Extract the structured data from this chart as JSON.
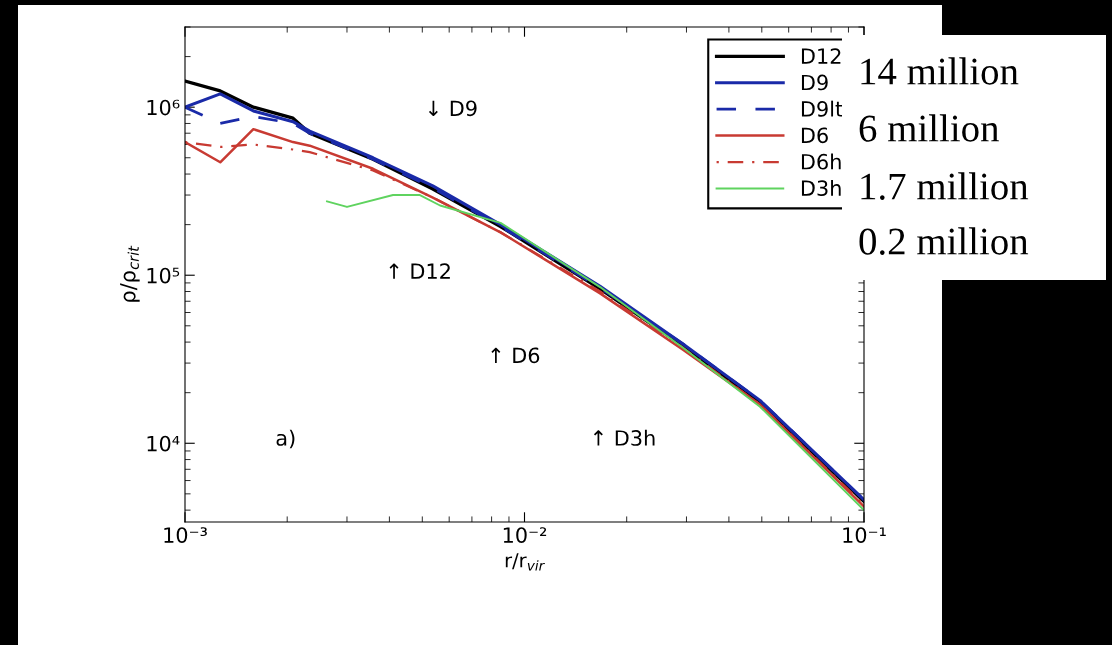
{
  "chart_data": {
    "type": "line",
    "xlabel": "r/r$_{vir}$",
    "ylabel": "ρ/ρ$_{crit}$",
    "log": "xy",
    "grid": false,
    "legend": "top right",
    "marker": "none",
    "xlim": [
      0.001,
      0.1
    ],
    "ylim": [
      3400,
      3000000
    ],
    "xticks": [
      {
        "value": 0.001,
        "label": "10⁻³"
      },
      {
        "value": 0.01,
        "label": "10⁻²"
      },
      {
        "value": 0.1,
        "label": "10⁻¹"
      }
    ],
    "yticks": [
      {
        "value": 10000,
        "label": "10⁴"
      },
      {
        "value": 100000,
        "label": "10⁵"
      },
      {
        "value": 1000000,
        "label": "10⁶"
      }
    ],
    "x": [
      0.001,
      0.00127,
      0.00159,
      0.00208,
      0.00233,
      0.00358,
      0.00537,
      0.0085,
      0.0167,
      0.0293,
      0.0494,
      0.1
    ],
    "series": [
      {
        "name": "D12",
        "color": "#000000",
        "line_style": "solid",
        "values": [
          1430000,
          1250000,
          1000000,
          860000,
          700000,
          490000,
          326000,
          195000,
          83000,
          38000,
          17500,
          4500
        ]
      },
      {
        "name": "D9",
        "color": "#1a2aa8",
        "line_style": "solid",
        "values": [
          1000000,
          1200000,
          950000,
          820000,
          720000,
          500000,
          340000,
          200000,
          86000,
          39000,
          18000,
          4600
        ]
      },
      {
        "name": "D9lt",
        "color": "#1a2aa8",
        "line_style": "dashed",
        "values": [
          1000000,
          800000,
          880000,
          800000,
          700000,
          490000,
          330000,
          195000,
          84000,
          39000,
          18000,
          4600
        ]
      },
      {
        "name": "D6",
        "color": "#c83a32",
        "line_style": "solid",
        "values": [
          620000,
          470000,
          740000,
          620000,
          590000,
          430000,
          290000,
          180000,
          78000,
          36000,
          17000,
          4200
        ]
      },
      {
        "name": "D6h",
        "color": "#c83a32",
        "line_style": "dashdot",
        "values": [
          620000,
          580000,
          600000,
          560000,
          540000,
          420000,
          290000,
          180000,
          80000,
          37000,
          17000,
          4300
        ]
      },
      {
        "name": "D3h",
        "color": "#5fd35f",
        "line_style": "solid",
        "x": [
          0.00262,
          0.003,
          0.0041,
          0.00492,
          0.00564,
          0.0085,
          0.0167,
          0.0293,
          0.0494,
          0.1
        ],
        "values": [
          275000,
          255000,
          300000,
          300000,
          260000,
          205000,
          85000,
          37000,
          16500,
          4000
        ]
      }
    ],
    "annotations": [
      "↓ D9",
      "↑ D12",
      "↑ D6",
      "↑ D3h",
      "a)",
      "14 million",
      "6 million",
      "1.7 million",
      "0.2 million"
    ]
  }
}
